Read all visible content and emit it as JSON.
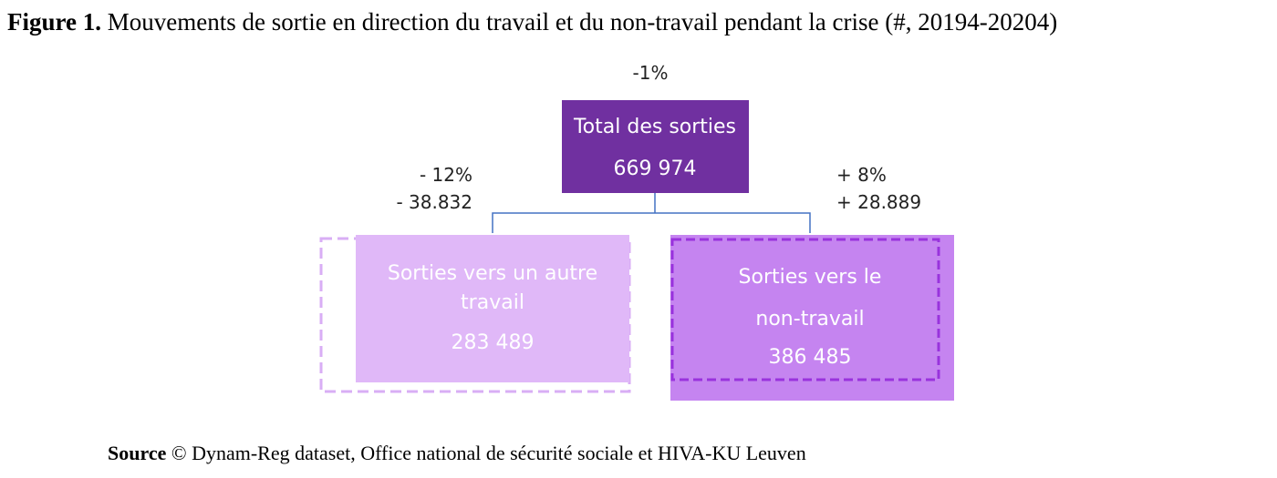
{
  "header": {
    "label": "Figure 1.",
    "title": "Mouvements de sortie en direction du travail et du non-travail pendant la crise (#, 20194-20204)"
  },
  "nodes": [
    {
      "change": "-1%",
      "lines": [
        "Total des sorties"
      ],
      "value": "669 974"
    },
    {
      "change_pct": "- 12%",
      "change_abs": "- 38.832",
      "lines": [
        "Sorties vers un autre",
        "travail"
      ],
      "value": "283 489"
    },
    {
      "change_pct": "+ 8%",
      "change_abs": "+ 28.889",
      "lines": [
        "Sorties vers le",
        "non-travail"
      ],
      "value": "386 485"
    }
  ],
  "footer": {
    "label": "Source",
    "text": "© Dynam-Reg dataset, Office national de sécurité sociale et HIVA-KU Leuven"
  }
}
